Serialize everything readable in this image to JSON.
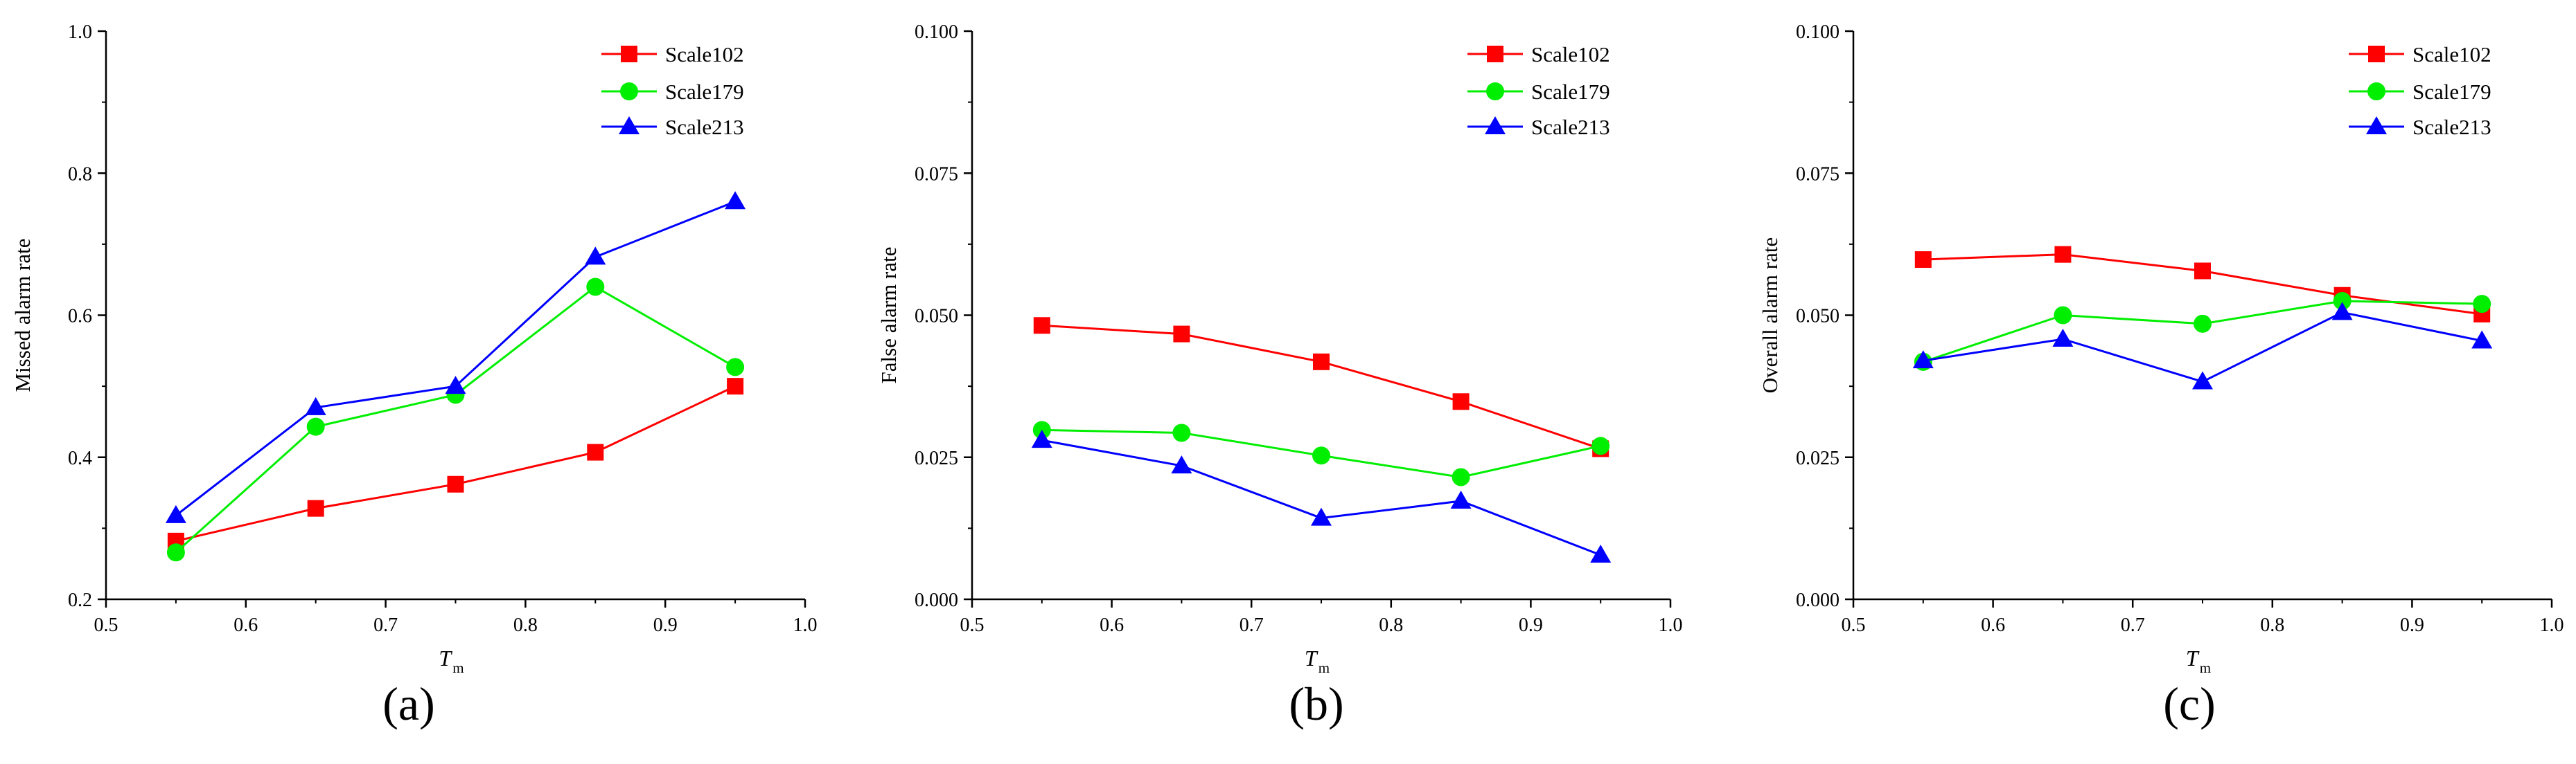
{
  "chart_data": [
    {
      "type": "line",
      "caption": "(a)",
      "ylabel": "Missed alarm rate",
      "xlabel": {
        "symbol": "T",
        "subscript": "m"
      },
      "xlim": [
        0.5,
        1.0
      ],
      "ylim": [
        0.2,
        1.0
      ],
      "xticks": [
        "0.5",
        "0.6",
        "0.7",
        "0.8",
        "0.9",
        "1.0"
      ],
      "yticks": [
        "0.2",
        "0.4",
        "0.6",
        "0.8",
        "1.0"
      ],
      "x": [
        0.55,
        0.65,
        0.75,
        0.85,
        0.95
      ],
      "legend_position": "top-right",
      "series": [
        {
          "name": "Scale102",
          "color": "#ff0000",
          "marker": "square",
          "values": [
            0.282,
            0.328,
            0.362,
            0.407,
            0.5
          ]
        },
        {
          "name": "Scale179",
          "color": "#00ee00",
          "marker": "circle",
          "values": [
            0.266,
            0.443,
            0.488,
            0.64,
            0.527
          ]
        },
        {
          "name": "Scale213",
          "color": "#0000ff",
          "marker": "triangle",
          "values": [
            0.318,
            0.47,
            0.5,
            0.682,
            0.76
          ]
        }
      ]
    },
    {
      "type": "line",
      "caption": "(b)",
      "ylabel": "False alarm rate",
      "xlabel": {
        "symbol": "T",
        "subscript": "m"
      },
      "xlim": [
        0.5,
        1.0
      ],
      "ylim": [
        0.0,
        0.1
      ],
      "xticks": [
        "0.5",
        "0.6",
        "0.7",
        "0.8",
        "0.9",
        "1.0"
      ],
      "yticks": [
        "0.000",
        "0.025",
        "0.050",
        "0.075",
        "0.100"
      ],
      "x": [
        0.55,
        0.65,
        0.75,
        0.85,
        0.95
      ],
      "legend_position": "top-right",
      "series": [
        {
          "name": "Scale102",
          "color": "#ff0000",
          "marker": "square",
          "values": [
            0.0482,
            0.0467,
            0.0418,
            0.0348,
            0.0265
          ]
        },
        {
          "name": "Scale179",
          "color": "#00ee00",
          "marker": "circle",
          "values": [
            0.0298,
            0.0293,
            0.0253,
            0.0215,
            0.027
          ]
        },
        {
          "name": "Scale213",
          "color": "#0000ff",
          "marker": "triangle",
          "values": [
            0.028,
            0.0235,
            0.0143,
            0.0173,
            0.0078
          ]
        }
      ]
    },
    {
      "type": "line",
      "caption": "(c)",
      "ylabel": "Overall alarm rate",
      "xlabel": {
        "symbol": "T",
        "subscript": "m"
      },
      "xlim": [
        0.5,
        1.0
      ],
      "ylim": [
        0.0,
        0.1
      ],
      "xticks": [
        "0.5",
        "0.6",
        "0.7",
        "0.8",
        "0.9",
        "1.0"
      ],
      "yticks": [
        "0.000",
        "0.025",
        "0.050",
        "0.075",
        "0.100"
      ],
      "x": [
        0.55,
        0.65,
        0.75,
        0.85,
        0.95
      ],
      "legend_position": "top-right",
      "series": [
        {
          "name": "Scale102",
          "color": "#ff0000",
          "marker": "square",
          "values": [
            0.0598,
            0.0607,
            0.0578,
            0.0535,
            0.0502
          ]
        },
        {
          "name": "Scale179",
          "color": "#00ee00",
          "marker": "circle",
          "values": [
            0.0418,
            0.05,
            0.0485,
            0.0525,
            0.052
          ]
        },
        {
          "name": "Scale213",
          "color": "#0000ff",
          "marker": "triangle",
          "values": [
            0.042,
            0.0458,
            0.0383,
            0.0505,
            0.0455
          ]
        }
      ]
    }
  ]
}
